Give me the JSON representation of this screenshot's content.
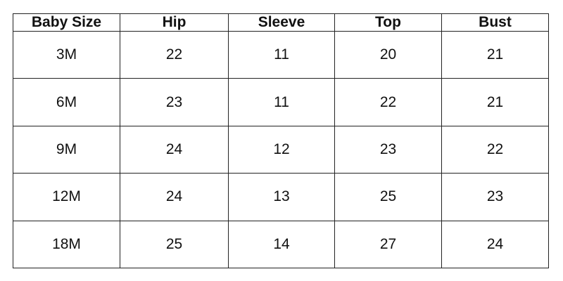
{
  "table": {
    "headers": [
      "Baby Size",
      "Hip",
      "Sleeve",
      "Top",
      "Bust"
    ],
    "rows": [
      [
        "3M",
        "22",
        "11",
        "20",
        "21"
      ],
      [
        "6M",
        "23",
        "11",
        "22",
        "21"
      ],
      [
        "9M",
        "24",
        "12",
        "23",
        "22"
      ],
      [
        "12M",
        "24",
        "13",
        "25",
        "23"
      ],
      [
        "18M",
        "25",
        "14",
        "27",
        "24"
      ]
    ]
  }
}
